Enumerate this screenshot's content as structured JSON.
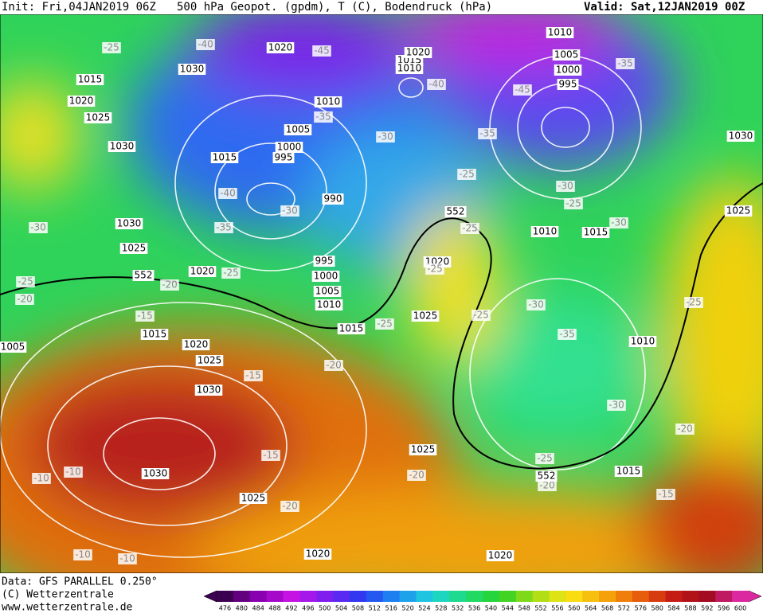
{
  "header": {
    "init": "Init: Fri,04JAN2019 06Z",
    "title": "500 hPa Geopot. (gpdm), T (C), Bodendruck (hPa)",
    "valid": "Valid: Sat,12JAN2019 00Z"
  },
  "footer": {
    "source": "Data: GFS PARALLEL 0.250°",
    "copyright": "(C) Wetterzentrale",
    "url": "www.wetterzentrale.de"
  },
  "colorbar": {
    "labels": [
      476,
      480,
      484,
      488,
      492,
      496,
      500,
      504,
      508,
      512,
      516,
      520,
      524,
      528,
      532,
      536,
      540,
      544,
      548,
      552,
      556,
      560,
      564,
      568,
      572,
      576,
      580,
      584,
      588,
      592,
      596,
      600
    ]
  },
  "map": {
    "pressure_labels": [
      1010,
      1020,
      1030,
      1015,
      1020,
      1025,
      1030,
      1015,
      1010,
      1020,
      1005,
      1000,
      995,
      1010,
      1005,
      1000,
      995,
      1015,
      990,
      1030,
      1025,
      1030,
      1025,
      1020,
      1020,
      995,
      1000,
      1005,
      1010,
      1015,
      1025,
      1010,
      1015,
      1010,
      1015,
      1020,
      1025,
      1030,
      1005,
      1030,
      1025,
      1025,
      1015,
      1020,
      1020
    ],
    "temperature_labels": [
      -25,
      -40,
      -45,
      -40,
      -35,
      -45,
      -35,
      -30,
      -35,
      -25,
      -40,
      -30,
      -35,
      -30,
      -25,
      -30,
      -25,
      -30,
      -25,
      -20,
      -20,
      -25,
      -25,
      -15,
      -25,
      -25,
      -30,
      -35,
      -20,
      -15,
      -30,
      -20,
      -25,
      -15,
      -10,
      -10,
      -20,
      -25,
      -20,
      -15,
      -20,
      -10,
      -10
    ],
    "height_labels": [
      552,
      552,
      552
    ]
  }
}
